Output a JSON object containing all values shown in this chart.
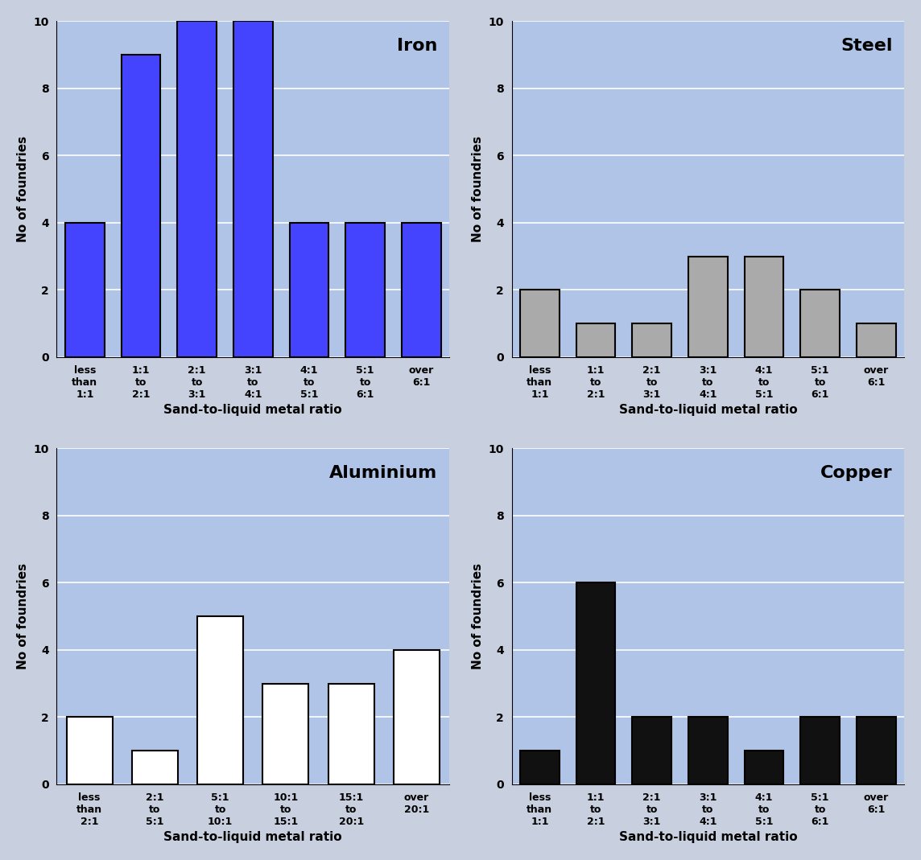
{
  "subplots": [
    {
      "title": "Iron",
      "bar_color": "#4444ff",
      "edge_color": "#000000",
      "face_color": "#b0c4e8",
      "values": [
        4,
        9,
        10,
        10,
        4,
        4,
        4
      ],
      "labels": [
        "less\nthan\n1:1",
        "1:1\nto\n2:1",
        "2:1\nto\n3:1",
        "3:1\nto\n4:1",
        "4:1\nto\n5:1",
        "5:1\nto\n6:1",
        "over\n6:1"
      ],
      "ylim": [
        0,
        10
      ],
      "yticks": [
        0,
        2,
        4,
        6,
        8,
        10
      ]
    },
    {
      "title": "Steel",
      "bar_color": "#aaaaaa",
      "edge_color": "#000000",
      "face_color": "#b0c4e8",
      "values": [
        2,
        1,
        1,
        3,
        3,
        2,
        1
      ],
      "labels": [
        "less\nthan\n1:1",
        "1:1\nto\n2:1",
        "2:1\nto\n3:1",
        "3:1\nto\n4:1",
        "4:1\nto\n5:1",
        "5:1\nto\n6:1",
        "over\n6:1"
      ],
      "ylim": [
        0,
        10
      ],
      "yticks": [
        0,
        2,
        4,
        6,
        8,
        10
      ]
    },
    {
      "title": "Aluminium",
      "bar_color": "#ffffff",
      "edge_color": "#000000",
      "face_color": "#b0c4e8",
      "values": [
        2,
        1,
        5,
        3,
        3,
        4
      ],
      "labels": [
        "less\nthan\n2:1",
        "2:1\nto\n5:1",
        "5:1\nto\n10:1",
        "10:1\nto\n15:1",
        "15:1\nto\n20:1",
        "over\n20:1"
      ],
      "ylim": [
        0,
        10
      ],
      "yticks": [
        0,
        2,
        4,
        6,
        8,
        10
      ]
    },
    {
      "title": "Copper",
      "bar_color": "#111111",
      "edge_color": "#000000",
      "face_color": "#b0c4e8",
      "values": [
        1,
        6,
        2,
        2,
        1,
        2,
        2
      ],
      "labels": [
        "less\nthan\n1:1",
        "1:1\nto\n2:1",
        "2:1\nto\n3:1",
        "3:1\nto\n4:1",
        "4:1\nto\n5:1",
        "5:1\nto\n6:1",
        "over\n6:1"
      ],
      "ylim": [
        0,
        10
      ],
      "yticks": [
        0,
        2,
        4,
        6,
        8,
        10
      ]
    }
  ],
  "xlabel": "Sand-to-liquid metal ratio",
  "ylabel": "No of foundries",
  "outer_background": "#c8d0e0",
  "title_fontsize": 16,
  "label_fontsize": 11,
  "tick_fontsize": 9
}
